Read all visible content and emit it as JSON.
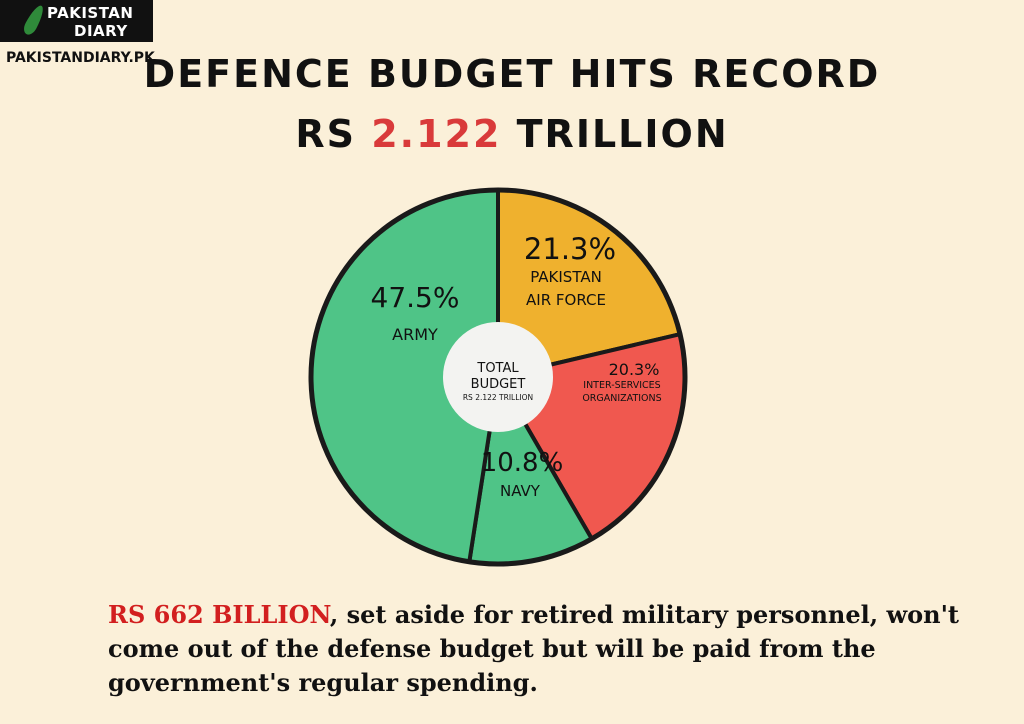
{
  "brand": {
    "logo_line1": "PAKISTAN",
    "logo_line2": "DIARY",
    "url": "PAKISTANDIARY.PK"
  },
  "title": {
    "line1": "DEFENCE BUDGET HITS RECORD",
    "line2_prefix": "RS ",
    "line2_value": "2.122",
    "line2_suffix": " TRILLION"
  },
  "chart_data": {
    "type": "pie",
    "center_label": {
      "line1": "TOTAL",
      "line2": "BUDGET",
      "line3": "RS 2.122 TRILLION"
    },
    "slices": [
      {
        "label": "ARMY",
        "percent_label": "47.5%",
        "value": 47.5,
        "color": "#4fc487"
      },
      {
        "label": "PAKISTAN AIR FORCE",
        "percent_label": "21.3%",
        "value": 21.3,
        "color": "#efb12e"
      },
      {
        "label": "INTER-SERVICES ORGANIZATIONS",
        "percent_label": "20.3%",
        "value": 20.3,
        "color": "#f0584f"
      },
      {
        "label": "NAVY",
        "percent_label": "10.8%",
        "value": 10.8,
        "color": "#4fc487"
      }
    ]
  },
  "footnote": {
    "highlight": "RS 662 BILLION",
    "text": ", set aside for retired military personnel, won't come out of the defense budget but will be paid from the government's regular spending."
  },
  "colors": {
    "background": "#fbf0d9",
    "accent": "#d93a3a"
  }
}
